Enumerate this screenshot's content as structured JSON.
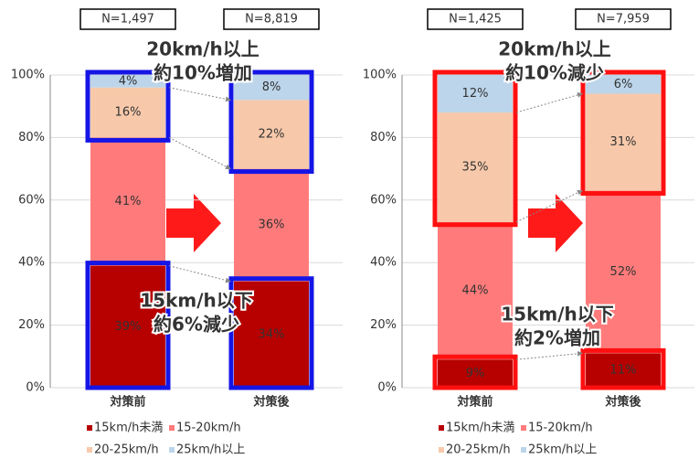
{
  "chart_data": [
    {
      "type": "bar",
      "stacked": true,
      "categories": [
        "対策前",
        "対策後"
      ],
      "n_labels": [
        "N=1,497",
        "N=8,819"
      ],
      "series": [
        {
          "name": "15km/h未満",
          "color": "#b70000",
          "values": [
            39,
            34
          ],
          "value_labels": [
            "39%",
            "34%"
          ]
        },
        {
          "name": "15-20km/h",
          "color": "#ff7b7b",
          "values": [
            41,
            36
          ],
          "value_labels": [
            "41%",
            "36%"
          ]
        },
        {
          "name": "20-25km/h",
          "color": "#f7c9aa",
          "values": [
            16,
            22
          ],
          "value_labels": [
            "16%",
            "22%"
          ]
        },
        {
          "name": "25km/h以上",
          "color": "#bcd5ea",
          "values": [
            4,
            8
          ],
          "value_labels": [
            "4%",
            "8%"
          ]
        }
      ],
      "ylim": [
        0,
        100
      ],
      "yticks": [
        {
          "value": 0,
          "label": "0%"
        },
        {
          "value": 20,
          "label": "20%"
        },
        {
          "value": 40,
          "label": "40%"
        },
        {
          "value": 60,
          "label": "60%"
        },
        {
          "value": 80,
          "label": "80%"
        },
        {
          "value": 100,
          "label": "100%"
        }
      ],
      "grid": true,
      "highlight_color": "#1515e6",
      "callouts": [
        {
          "lines": [
            "20km/h以上",
            "約10%増加"
          ]
        },
        {
          "lines": [
            "15km/h以下",
            "約6%減少"
          ]
        }
      ]
    },
    {
      "type": "bar",
      "stacked": true,
      "categories": [
        "対策前",
        "対策後"
      ],
      "n_labels": [
        "N=1,425",
        "N=7,959"
      ],
      "series": [
        {
          "name": "15km/h未満",
          "color": "#b70000",
          "values": [
            9,
            11
          ],
          "value_labels": [
            "9%",
            "11%"
          ]
        },
        {
          "name": "15-20km/h",
          "color": "#ff7b7b",
          "values": [
            44,
            52
          ],
          "value_labels": [
            "44%",
            "52%"
          ]
        },
        {
          "name": "20-25km/h",
          "color": "#f7c9aa",
          "values": [
            35,
            31
          ],
          "value_labels": [
            "35%",
            "31%"
          ]
        },
        {
          "name": "25km/h以上",
          "color": "#bcd5ea",
          "values": [
            12,
            6
          ],
          "value_labels": [
            "12%",
            "6%"
          ]
        }
      ],
      "ylim": [
        0,
        100
      ],
      "yticks": [
        {
          "value": 0,
          "label": "0%"
        },
        {
          "value": 20,
          "label": "20%"
        },
        {
          "value": 40,
          "label": "40%"
        },
        {
          "value": 60,
          "label": "60%"
        },
        {
          "value": 80,
          "label": "80%"
        },
        {
          "value": 100,
          "label": "100%"
        }
      ],
      "grid": true,
      "highlight_color": "#ff1010",
      "callouts": [
        {
          "lines": [
            "20km/h以上",
            "約10%減少"
          ]
        },
        {
          "lines": [
            "15km/h以下",
            "約2%増加"
          ]
        }
      ]
    }
  ]
}
